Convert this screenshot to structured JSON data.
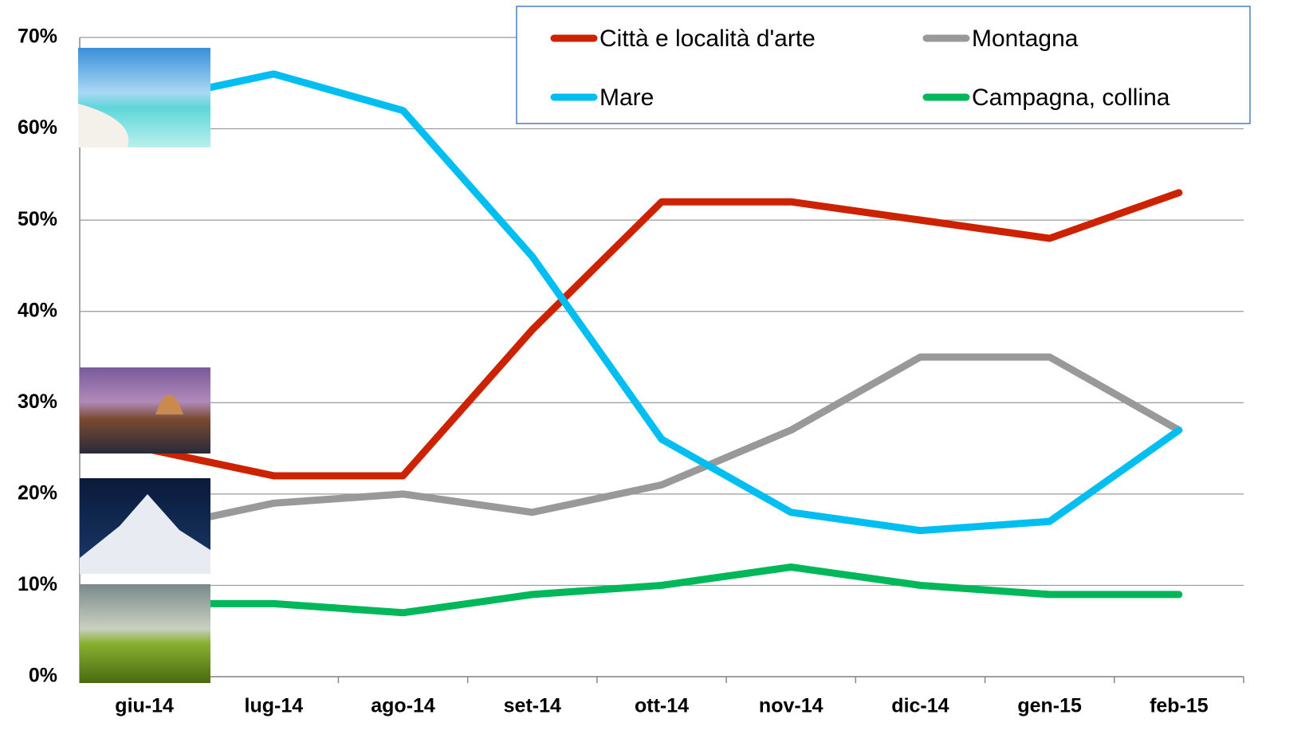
{
  "chart_data": {
    "type": "line",
    "categories": [
      "giu-14",
      "lug-14",
      "ago-14",
      "set-14",
      "ott-14",
      "nov-14",
      "dic-14",
      "gen-15",
      "feb-15"
    ],
    "series": [
      {
        "name": "Città e località d'arte",
        "color": "#cc2200",
        "values": [
          25,
          22,
          22,
          38,
          52,
          52,
          50,
          48,
          53
        ]
      },
      {
        "name": "Montagna",
        "color": "#999999",
        "values": [
          16,
          19,
          20,
          18,
          21,
          27,
          35,
          35,
          27
        ]
      },
      {
        "name": "Mare",
        "color": "#00bff0",
        "values": [
          63,
          66,
          62,
          46,
          26,
          18,
          16,
          17,
          27
        ]
      },
      {
        "name": "Campagna, collina",
        "color": "#00b859",
        "values": [
          8,
          8,
          7,
          9,
          10,
          12,
          10,
          9,
          9
        ]
      }
    ],
    "ylim": [
      0,
      70
    ],
    "yticks": [
      {
        "value": 0,
        "label": "0%"
      },
      {
        "value": 10,
        "label": "10%"
      },
      {
        "value": 20,
        "label": "20%"
      },
      {
        "value": 30,
        "label": "30%"
      },
      {
        "value": 40,
        "label": "40%"
      },
      {
        "value": 50,
        "label": "50%"
      },
      {
        "value": 60,
        "label": "60%"
      },
      {
        "value": 70,
        "label": "70%"
      }
    ],
    "grid": true
  }
}
